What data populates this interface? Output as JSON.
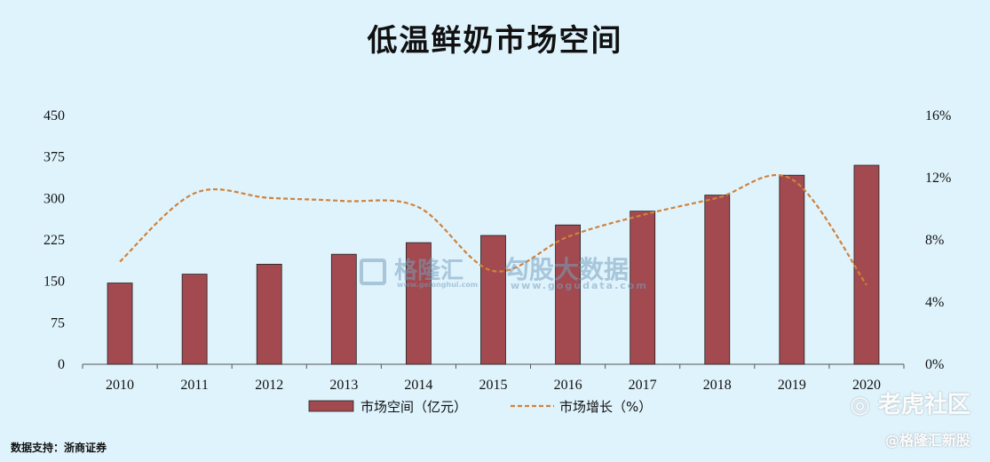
{
  "chart_data": {
    "type": "bar",
    "title": "低温鲜奶市场空间",
    "categories": [
      "2010",
      "2011",
      "2012",
      "2013",
      "2014",
      "2015",
      "2016",
      "2017",
      "2018",
      "2019",
      "2020"
    ],
    "series": [
      {
        "name": "市场空间（亿元）",
        "type": "bar",
        "axis": "left",
        "color": "#a24a4f",
        "values": [
          147,
          163,
          181,
          199,
          220,
          233,
          252,
          277,
          306,
          342,
          360
        ]
      },
      {
        "name": "市场增长（%）",
        "type": "line",
        "axis": "right",
        "color": "#d0823a",
        "values": [
          6.6,
          11.0,
          10.7,
          10.5,
          10.1,
          6.0,
          8.2,
          9.6,
          10.7,
          11.9,
          5.1
        ]
      }
    ],
    "ylim": [
      0,
      450
    ],
    "yticks": [
      "0",
      "75",
      "150",
      "225",
      "300",
      "375",
      "450"
    ],
    "y2lim": [
      0,
      16
    ],
    "y2ticks": [
      "0%",
      "4%",
      "8%",
      "12%",
      "16%"
    ],
    "grid": false,
    "legend_position": "bottom-center"
  },
  "source_text": "数据支持：浙商证券",
  "watermarks": {
    "glh": "格隆汇",
    "glh_url": "www.gelonghui.com",
    "gogu": "勾股大数据",
    "gogu_url": "www.gogudata.com",
    "tiger": "老虎社区",
    "glh_new": "@格隆汇新股"
  }
}
